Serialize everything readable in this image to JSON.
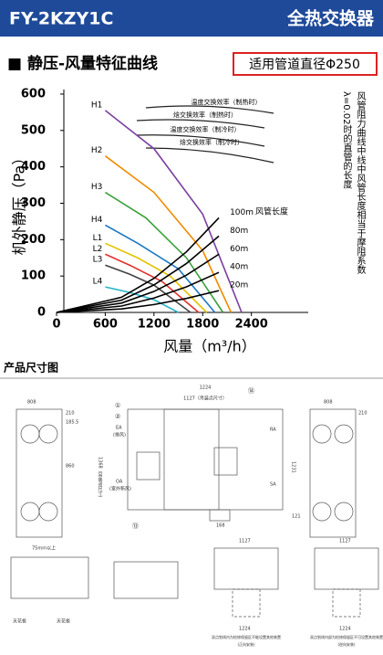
{
  "header": {
    "model": "FY-2KZY1C",
    "product": "全热交换器"
  },
  "section": {
    "title": "■ 静压-风量特征曲线",
    "duct": "适用管道直径Φ250"
  },
  "chart_data": {
    "type": "line",
    "ylabel": "机外静压（Pa）",
    "xlabel": "风量（m³/h）",
    "duct_length_label": "风管长度",
    "note": [
      "风管阻力曲线中线中风管长度相当于摩阻系数",
      "λ=0.02时的直管的长度"
    ],
    "efficiency_labels": [
      "温度交换效率（制热时）",
      "焓交换效率（制热时）",
      "温度交换效率（制冷时）",
      "焓交换效率（制冷时）"
    ],
    "xlim": [
      0,
      3100
    ],
    "ylim": [
      0,
      620
    ],
    "xticks": [
      0,
      600,
      1200,
      1800,
      2400
    ],
    "yticks": [
      0,
      100,
      200,
      300,
      400,
      500,
      600
    ],
    "series": [
      {
        "name": "H1",
        "color": "#7b3fa0",
        "x": [
          600,
          1200,
          1800,
          2280
        ],
        "values": [
          555,
          450,
          270,
          0
        ]
      },
      {
        "name": "H2",
        "color": "#f08a00",
        "x": [
          600,
          1200,
          1800,
          2150
        ],
        "values": [
          430,
          330,
          170,
          0
        ]
      },
      {
        "name": "H3",
        "color": "#3aa03a",
        "x": [
          600,
          1100,
          1600,
          2050
        ],
        "values": [
          330,
          260,
          150,
          0
        ]
      },
      {
        "name": "H4",
        "color": "#1a78c2",
        "x": [
          600,
          1000,
          1500,
          1950
        ],
        "values": [
          240,
          190,
          120,
          0
        ]
      },
      {
        "name": "L1",
        "color": "#e6c200",
        "x": [
          600,
          1000,
          1400,
          1850
        ],
        "values": [
          190,
          150,
          100,
          0
        ]
      },
      {
        "name": "L2",
        "color": "#e0302a",
        "x": [
          600,
          900,
          1300,
          1750
        ],
        "values": [
          160,
          130,
          85,
          0
        ]
      },
      {
        "name": "L3",
        "color": "#444444",
        "x": [
          600,
          900,
          1200,
          1650
        ],
        "values": [
          130,
          105,
          75,
          0
        ]
      },
      {
        "name": "L4",
        "color": "#28b4c8",
        "x": [
          600,
          900,
          1200,
          1500
        ],
        "values": [
          70,
          55,
          35,
          0
        ]
      },
      {
        "name": "100m",
        "color": "#000000",
        "x": [
          0,
          800,
          1200,
          1600,
          2000
        ],
        "values": [
          0,
          41.6,
          93.6,
          166.4,
          260
        ]
      },
      {
        "name": "80m",
        "color": "#000000",
        "x": [
          0,
          800,
          1200,
          1600,
          2000
        ],
        "values": [
          0,
          33.6,
          75.6,
          134.4,
          210
        ]
      },
      {
        "name": "60m",
        "color": "#000000",
        "x": [
          0,
          800,
          1200,
          1600,
          2000
        ],
        "values": [
          0,
          25.6,
          57.6,
          102.4,
          160
        ]
      },
      {
        "name": "40m",
        "color": "#000000",
        "x": [
          0,
          800,
          1200,
          1600,
          2000
        ],
        "values": [
          0,
          17.6,
          39.6,
          70.4,
          110
        ]
      },
      {
        "name": "20m",
        "color": "#000000",
        "x": [
          0,
          800,
          1200,
          1600,
          2000
        ],
        "values": [
          0,
          9.6,
          21.6,
          38.4,
          60
        ]
      }
    ]
  },
  "drawings": {
    "title": "产品尺寸图",
    "labels": [
      "808",
      "210",
      "185.5",
      "860",
      "1224",
      "1127（吊装点尺寸）",
      "EA",
      "(排风)",
      "OA",
      "(室外新风)",
      "1368（吊装点尺寸）",
      "RA",
      "SA",
      "1231",
      "168",
      "121",
      "808",
      "210",
      "75mm以上",
      "天花板",
      "天花板",
      "1127",
      "1127",
      "1224",
      "1224",
      "双点划线内为检修保留区不能设置其他装置",
      "(正向安装)",
      "双点划线内部为检修保留区不可设置其他装置",
      "(逆向安装)",
      "①",
      "②",
      "⑬",
      "⑭"
    ]
  }
}
